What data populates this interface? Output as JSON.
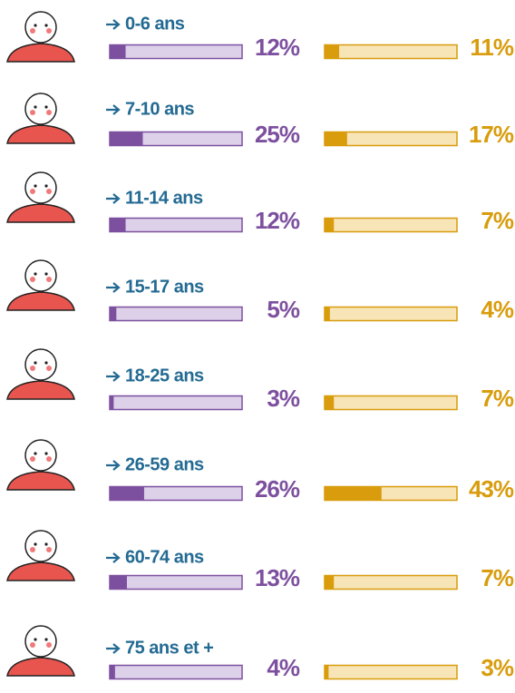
{
  "chart_data": {
    "type": "bar",
    "categories": [
      "0-6 ans",
      "7-10 ans",
      "11-14 ans",
      "15-17 ans",
      "18-25 ans",
      "26-59 ans",
      "60-74 ans",
      "75 ans et +"
    ],
    "xlim": [
      0,
      100
    ],
    "series": [
      {
        "color": "#7d509f",
        "values": [
          12,
          25,
          12,
          5,
          3,
          26,
          13,
          4
        ],
        "value_labels": [
          "12%",
          "25%",
          "12%",
          "5%",
          "3%",
          "26%",
          "13%",
          "4%"
        ]
      },
      {
        "color": "#d89c0c",
        "values": [
          11,
          17,
          7,
          4,
          7,
          43,
          7,
          3
        ],
        "value_labels": [
          "11%",
          "17%",
          "7%",
          "4%",
          "7%",
          "43%",
          "7%",
          "3%"
        ]
      }
    ]
  }
}
